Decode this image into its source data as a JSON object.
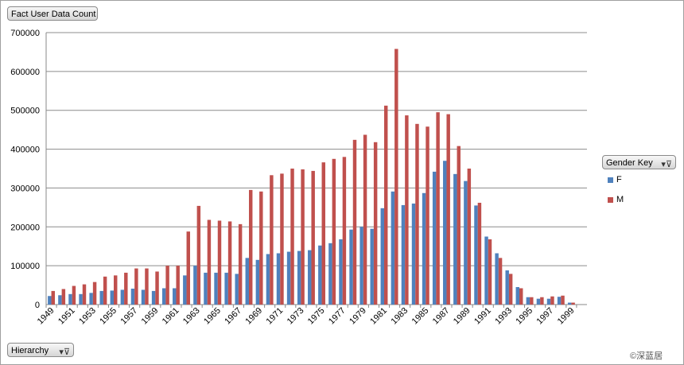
{
  "title_button": {
    "label": "Fact User Data Count",
    "icon": "none"
  },
  "legend_button": {
    "label": "Gender Key",
    "icon": "filter-icon"
  },
  "hierarchy_button": {
    "label": "Hierarchy",
    "icon": "filter-icon"
  },
  "watermark": "©深蓝居",
  "chart_data": {
    "type": "bar",
    "categories": [
      "1949",
      "1950",
      "1951",
      "1952",
      "1953",
      "1954",
      "1955",
      "1956",
      "1957",
      "1958",
      "1959",
      "1960",
      "1961",
      "1962",
      "1963",
      "1964",
      "1965",
      "1966",
      "1967",
      "1968",
      "1969",
      "1970",
      "1971",
      "1972",
      "1973",
      "1974",
      "1975",
      "1976",
      "1977",
      "1978",
      "1979",
      "1980",
      "1981",
      "1982",
      "1983",
      "1984",
      "1985",
      "1986",
      "1987",
      "1988",
      "1989",
      "1990",
      "1991",
      "1992",
      "1993",
      "1994",
      "1995",
      "1996",
      "1997",
      "1998",
      "1999",
      "2000"
    ],
    "x_tick_labels": [
      "1949",
      "1951",
      "1953",
      "1955",
      "1957",
      "1959",
      "1961",
      "1963",
      "1965",
      "1967",
      "1969",
      "1971",
      "1973",
      "1975",
      "1977",
      "1979",
      "1981",
      "1983",
      "1985",
      "1987",
      "1989",
      "1991",
      "1993",
      "1995",
      "1997",
      "1999"
    ],
    "series": [
      {
        "name": "F",
        "color": "#4f81bd",
        "values": [
          22000,
          24000,
          27000,
          27000,
          30000,
          35000,
          36000,
          38000,
          41000,
          38000,
          35000,
          42000,
          42000,
          75000,
          100000,
          82000,
          82000,
          82000,
          79000,
          120000,
          115000,
          130000,
          132000,
          136000,
          138000,
          140000,
          152000,
          158000,
          168000,
          193000,
          200000,
          195000,
          248000,
          291000,
          256000,
          260000,
          287000,
          342000,
          370000,
          336000,
          318000,
          255000,
          175000,
          132000,
          88000,
          45000,
          19000,
          15000,
          15000,
          20000,
          5000,
          0
        ]
      },
      {
        "name": "M",
        "color": "#c0504d",
        "values": [
          35000,
          40000,
          48000,
          52000,
          58000,
          72000,
          75000,
          82000,
          93000,
          93000,
          85000,
          100000,
          100000,
          188000,
          254000,
          218000,
          216000,
          214000,
          207000,
          295000,
          291000,
          333000,
          337000,
          350000,
          348000,
          344000,
          366000,
          375000,
          380000,
          424000,
          437000,
          418000,
          512000,
          658000,
          487000,
          465000,
          458000,
          495000,
          490000,
          408000,
          350000,
          262000,
          168000,
          120000,
          79000,
          42000,
          19000,
          19000,
          21000,
          23000,
          5000,
          0
        ]
      }
    ],
    "y_ticks": [
      "0",
      "100000",
      "200000",
      "300000",
      "400000",
      "500000",
      "600000",
      "700000"
    ],
    "ylim": [
      0,
      700000
    ],
    "grid": true,
    "legend_position": "right"
  }
}
